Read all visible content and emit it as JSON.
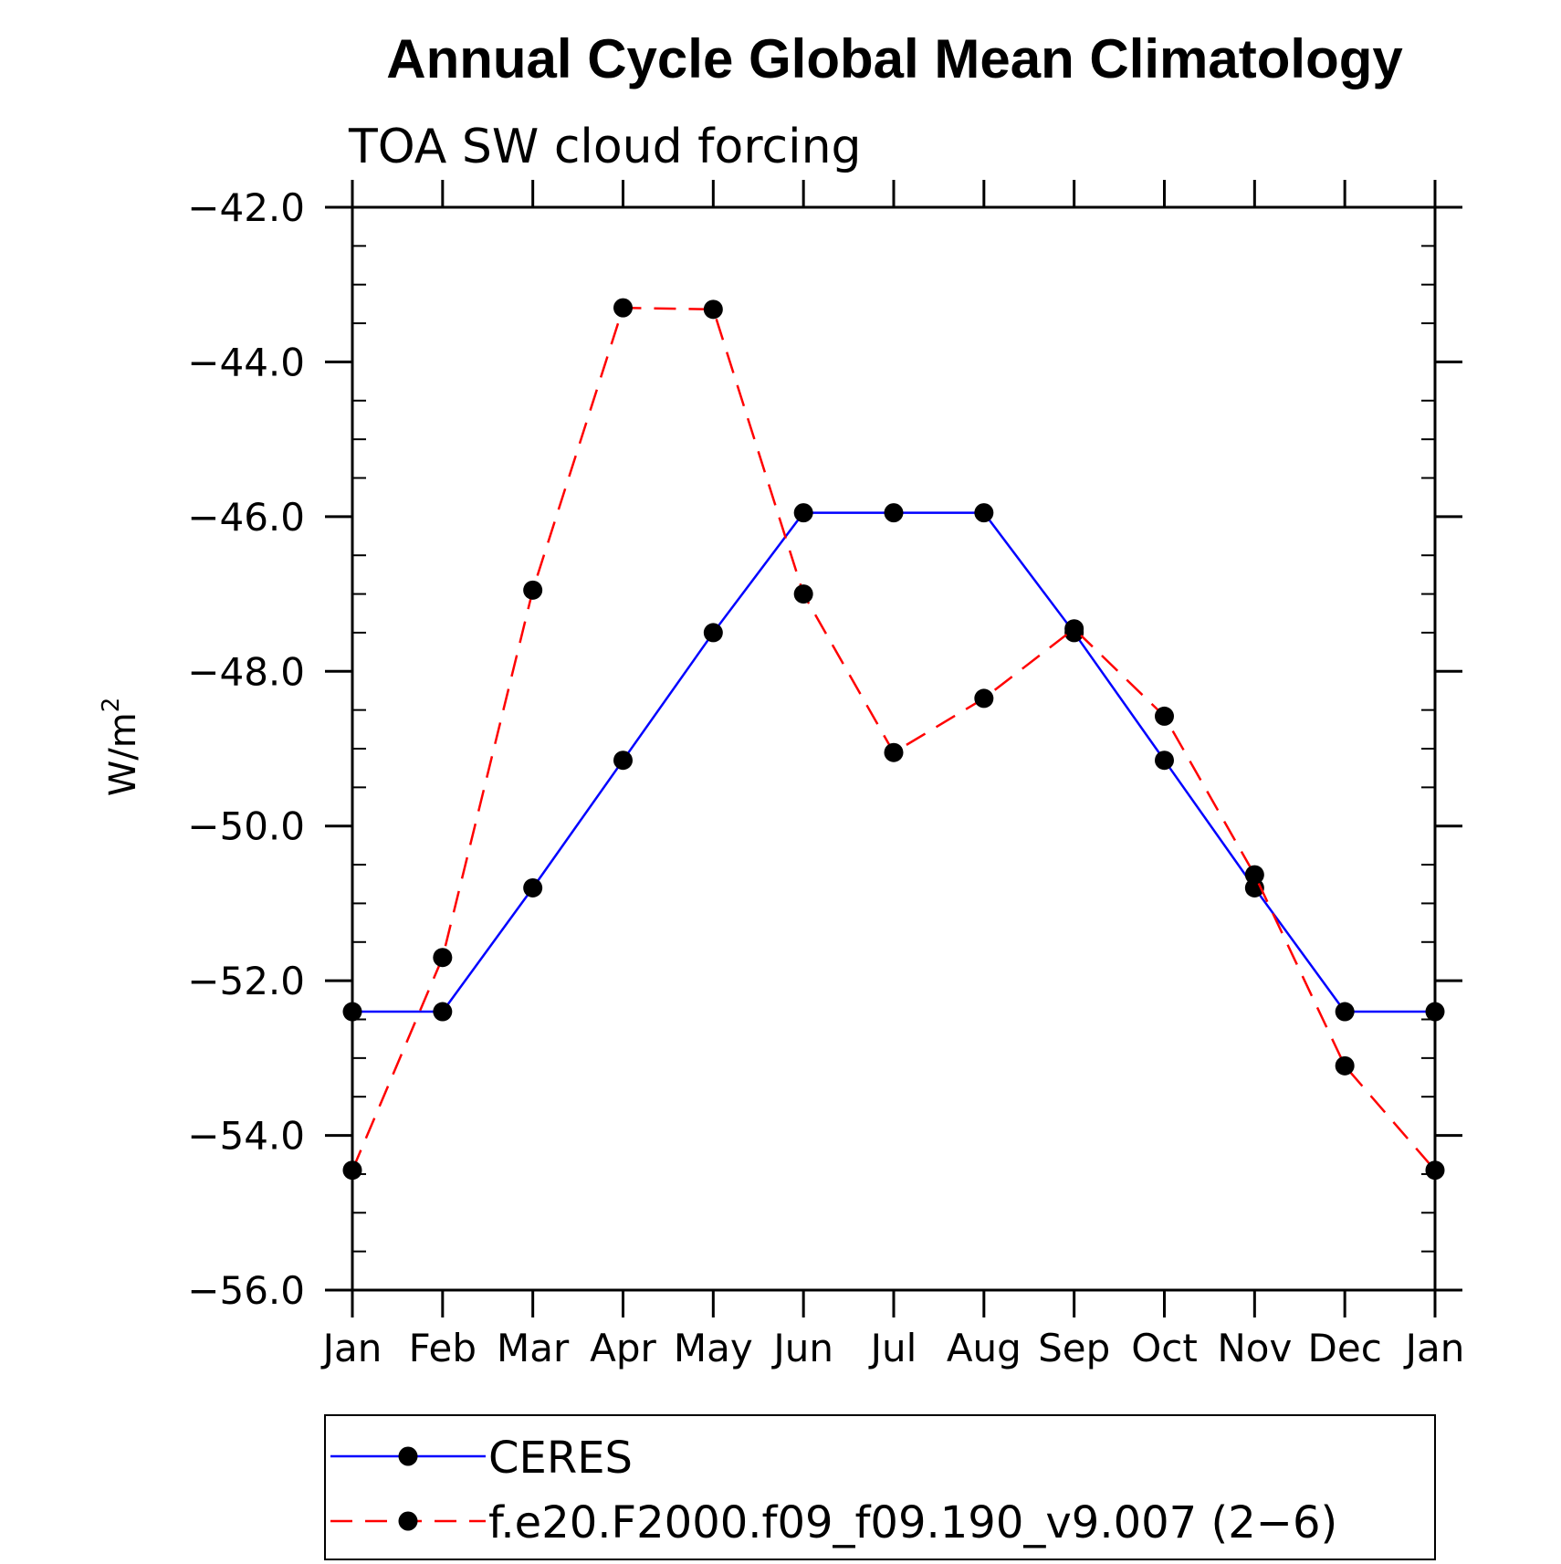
{
  "chart_data": {
    "type": "line",
    "title": "Annual Cycle Global Mean Climatology",
    "subtitle": "TOA SW cloud forcing",
    "ylabel": "W/m",
    "ylabel_sup": "2",
    "categories": [
      "Jan",
      "Feb",
      "Mar",
      "Apr",
      "May",
      "Jun",
      "Jul",
      "Aug",
      "Sep",
      "Oct",
      "Nov",
      "Dec",
      "Jan"
    ],
    "ylim": [
      -56.0,
      -42.0
    ],
    "yticks": [
      -42.0,
      -44.0,
      -46.0,
      -48.0,
      -50.0,
      -52.0,
      -54.0,
      -56.0
    ],
    "ytick_labels": [
      "−42.0",
      "−44.0",
      "−46.0",
      "−48.0",
      "−50.0",
      "−52.0",
      "−54.0",
      "−56.0"
    ],
    "y_minor_step": 0.5,
    "grid": false,
    "legend_position": "bottom",
    "series": [
      {
        "name": "CERES",
        "color": "#0000ff",
        "dash": "solid",
        "values": [
          -52.4,
          -52.4,
          -50.8,
          -49.15,
          -47.5,
          -45.95,
          -45.95,
          -45.95,
          -47.5,
          -49.15,
          -50.8,
          -52.4,
          -52.4
        ]
      },
      {
        "name": "f.e20.F2000.f09_f09.190_v9.007 (2−6)",
        "color": "#ff0000",
        "dash": "dashed",
        "values": [
          -54.45,
          -51.7,
          -46.95,
          -43.3,
          -43.32,
          -47.0,
          -49.05,
          -48.35,
          -47.45,
          -48.58,
          -50.63,
          -53.1,
          -54.45
        ]
      }
    ]
  }
}
